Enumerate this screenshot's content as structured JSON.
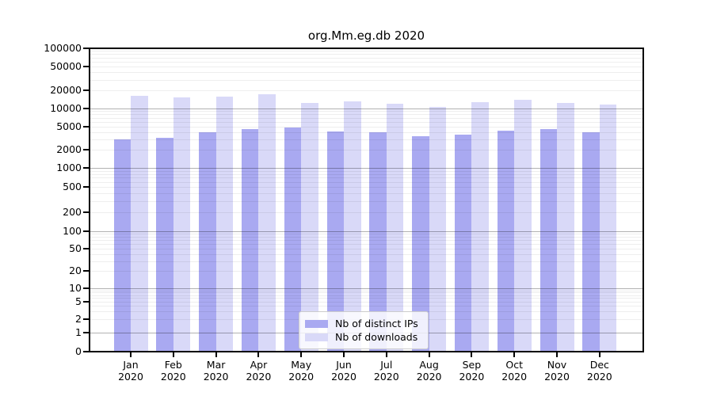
{
  "title": "org.Mm.eg.db 2020",
  "legend": {
    "items": [
      {
        "label": "Nb of distinct IPs",
        "color": "#a9a9f1"
      },
      {
        "label": "Nb of downloads",
        "color": "#d9d9f8"
      }
    ]
  },
  "axes": {
    "y_tick_labels": [
      "100000",
      "50000",
      "20000",
      "10000",
      "5000",
      "2000",
      "1000",
      "500",
      "200",
      "100",
      "50",
      "20",
      "10",
      "5",
      "2",
      "1",
      "0"
    ],
    "x_year": "2020"
  },
  "chart_data": {
    "type": "bar",
    "title": "org.Mm.eg.db 2020",
    "categories": [
      "Jan",
      "Feb",
      "Mar",
      "Apr",
      "May",
      "Jun",
      "Jul",
      "Aug",
      "Sep",
      "Oct",
      "Nov",
      "Dec"
    ],
    "x_tick_second_line": "2020",
    "series": [
      {
        "name": "Nb of distinct IPs",
        "color": "#a9a9f1",
        "values": [
          3000,
          3200,
          3950,
          4550,
          4850,
          4100,
          3950,
          3400,
          3650,
          4200,
          4500,
          3950
        ]
      },
      {
        "name": "Nb of downloads",
        "color": "#d9d9f8",
        "values": [
          16100,
          15500,
          15700,
          17400,
          12500,
          13100,
          12000,
          10700,
          12800,
          13900,
          12300,
          11500
        ]
      }
    ],
    "yscale": "symlog",
    "ylim": [
      0,
      100000
    ],
    "y_ticks": [
      0,
      1,
      2,
      5,
      10,
      20,
      50,
      100,
      200,
      500,
      1000,
      2000,
      5000,
      10000,
      20000,
      50000,
      100000
    ],
    "grid": true,
    "legend_position": "lower center"
  }
}
